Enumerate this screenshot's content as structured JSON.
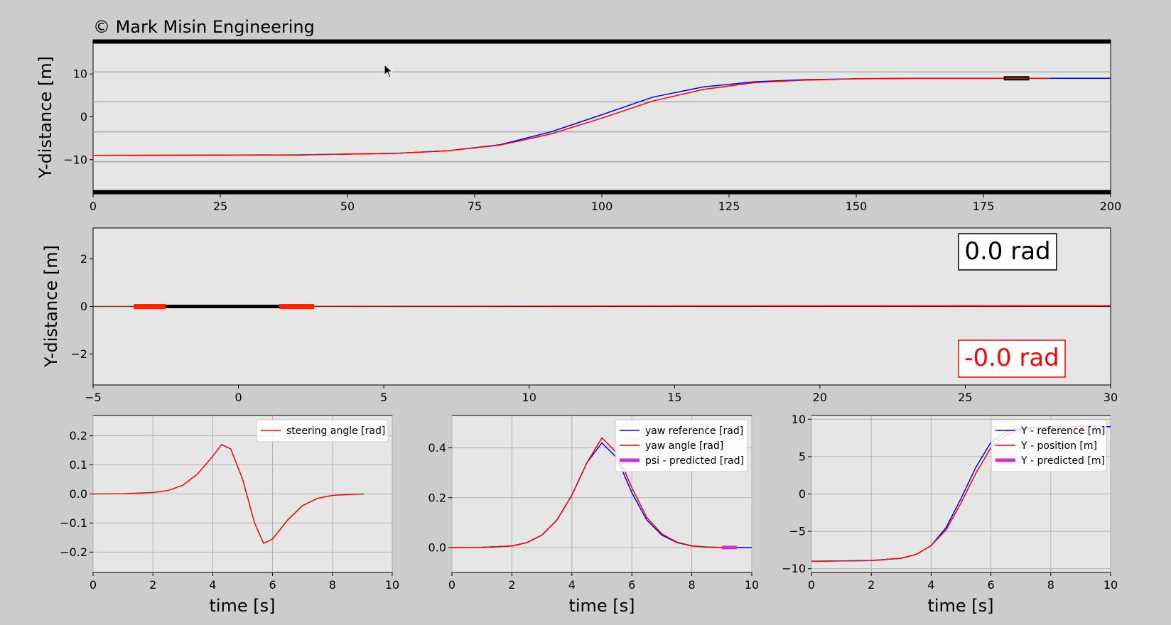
{
  "copyright": "© Mark Misin Engineering",
  "colors": {
    "reference": "#0000ff",
    "actual": "#ff0000",
    "predicted": "#cc33cc",
    "road": "#000000",
    "lane": "#aaaaaa",
    "axes_bg": "#e6e6e6",
    "figure_bg": "#cccccc"
  },
  "chart_data": [
    {
      "type": "line",
      "id": "road",
      "ylabel": "Y-distance [m]",
      "xlabel": "",
      "xlim": [
        0,
        200
      ],
      "ylim": [
        -18,
        18
      ],
      "xticks": [
        "0",
        "25",
        "50",
        "75",
        "100",
        "125",
        "150",
        "175",
        "200"
      ],
      "yticks": [
        "−10",
        "0",
        "10"
      ],
      "lane_lines_y": [
        -10.5,
        -3.5,
        3.5,
        10.5
      ],
      "road_edges_y": [
        -17.5,
        17.5
      ],
      "series": [
        {
          "role": "reference",
          "color": "#0000ff",
          "x": [
            0,
            40,
            60,
            70,
            80,
            90,
            100,
            110,
            120,
            130,
            140,
            150,
            160,
            170,
            180,
            190,
            200
          ],
          "y": [
            -9,
            -8.9,
            -8.5,
            -7.9,
            -6.5,
            -3.5,
            0.5,
            4.6,
            7,
            8.2,
            8.7,
            8.9,
            9,
            9,
            9,
            9,
            9
          ]
        },
        {
          "role": "actual",
          "color": "#ff0000",
          "x": [
            0,
            40,
            60,
            70,
            80,
            90,
            100,
            110,
            120,
            130,
            140,
            150,
            160,
            170,
            180,
            188
          ],
          "y": [
            -9,
            -8.9,
            -8.5,
            -7.9,
            -6.6,
            -4,
            -0.3,
            3.7,
            6.4,
            8,
            8.6,
            8.9,
            9,
            9,
            9,
            9
          ]
        }
      ],
      "vehicle": {
        "x": [
          179,
          184
        ],
        "y": 9
      }
    },
    {
      "type": "line",
      "id": "vehicle-zoom",
      "ylabel": "Y-distance [m]",
      "xlabel": "",
      "xlim": [
        -5,
        30
      ],
      "ylim": [
        -3.3,
        3.3
      ],
      "xticks": [
        "−5",
        "0",
        "5",
        "10",
        "15",
        "20",
        "25",
        "30"
      ],
      "yticks": [
        "−2",
        "0",
        "2"
      ],
      "series": [
        {
          "role": "reference",
          "color": "#000000",
          "x": [
            -5,
            30
          ],
          "y": [
            0,
            0
          ]
        },
        {
          "role": "actual",
          "color": "#ff0000",
          "x": [
            -5,
            30
          ],
          "y": [
            0,
            0.04
          ]
        }
      ],
      "body": {
        "x": [
          -2.5,
          1.5
        ],
        "y": 0
      },
      "wheels": [
        {
          "x": [
            -3.6,
            -2.5
          ],
          "y": 0
        },
        {
          "x": [
            1.4,
            2.6
          ],
          "y": 0
        }
      ],
      "annotations": {
        "reference_angle": "0.0 rad",
        "actual_angle": "-0.0 rad"
      }
    },
    {
      "type": "line",
      "id": "steering",
      "xlabel": "time [s]",
      "ylabel": "",
      "xlim": [
        0,
        10
      ],
      "ylim": [
        -0.27,
        0.27
      ],
      "xticks": [
        "0",
        "2",
        "4",
        "6",
        "8",
        "10"
      ],
      "yticks": [
        "−0.2",
        "−0.1",
        "0.0",
        "0.1",
        "0.2"
      ],
      "yticks_values": [
        -0.2,
        -0.1,
        0.0,
        0.1,
        0.2
      ],
      "legend": "top-right",
      "series": [
        {
          "name": "steering angle [rad]",
          "color": "#ff0000",
          "x": [
            0,
            1,
            2,
            2.5,
            3,
            3.5,
            4,
            4.3,
            4.6,
            5,
            5.4,
            5.7,
            6,
            6.5,
            7,
            7.5,
            8,
            8.5,
            9.05
          ],
          "y": [
            0,
            0.001,
            0.005,
            0.012,
            0.03,
            0.07,
            0.13,
            0.17,
            0.155,
            0.05,
            -0.1,
            -0.17,
            -0.155,
            -0.09,
            -0.04,
            -0.015,
            -0.005,
            -0.002,
            0
          ]
        }
      ]
    },
    {
      "type": "line",
      "id": "yaw",
      "xlabel": "time [s]",
      "ylabel": "",
      "xlim": [
        0,
        10
      ],
      "ylim": [
        -0.1,
        0.53
      ],
      "xticks": [
        "0",
        "2",
        "4",
        "6",
        "8",
        "10"
      ],
      "yticks": [
        "0.0",
        "0.2",
        "0.4"
      ],
      "yticks_values": [
        0.0,
        0.2,
        0.4
      ],
      "legend": "top-right",
      "series": [
        {
          "name": "yaw reference [rad]",
          "color": "#0000ff",
          "x": [
            0,
            1,
            2,
            2.5,
            3,
            3.5,
            4,
            4.5,
            5,
            5.5,
            6,
            6.5,
            7,
            7.5,
            8,
            8.5,
            9,
            10
          ],
          "y": [
            0,
            0.001,
            0.006,
            0.02,
            0.05,
            0.11,
            0.21,
            0.34,
            0.42,
            0.36,
            0.22,
            0.11,
            0.05,
            0.02,
            0.006,
            0.002,
            0,
            0
          ]
        },
        {
          "name": "yaw angle [rad]",
          "color": "#ff0000",
          "x": [
            0,
            1,
            2,
            2.5,
            3,
            3.5,
            4,
            4.5,
            5,
            5.5,
            6,
            6.5,
            7,
            7.5,
            8,
            8.5,
            9.05
          ],
          "y": [
            0,
            0.001,
            0.006,
            0.02,
            0.05,
            0.11,
            0.21,
            0.34,
            0.44,
            0.38,
            0.24,
            0.12,
            0.055,
            0.022,
            0.007,
            0.002,
            0
          ]
        },
        {
          "name": "psi - predicted [rad]",
          "color": "#cc33cc",
          "x": [
            9,
            9.5
          ],
          "y": [
            0,
            0
          ]
        }
      ]
    },
    {
      "type": "line",
      "id": "y-position",
      "xlabel": "time [s]",
      "ylabel": "",
      "xlim": [
        0,
        10
      ],
      "ylim": [
        -10.5,
        10.5
      ],
      "xticks": [
        "0",
        "2",
        "4",
        "6",
        "8",
        "10"
      ],
      "yticks": [
        "−10",
        "−5",
        "0",
        "5",
        "10"
      ],
      "yticks_values": [
        -10,
        -5,
        0,
        5,
        10
      ],
      "legend": "top-right",
      "series": [
        {
          "name": "Y - reference [m]",
          "color": "#0000ff",
          "x": [
            0,
            2,
            3,
            3.5,
            4,
            4.5,
            5,
            5.5,
            6,
            6.5,
            7,
            7.5,
            8,
            9,
            10
          ],
          "y": [
            -9,
            -8.9,
            -8.6,
            -8.1,
            -6.9,
            -4.5,
            -0.6,
            3.6,
            6.9,
            8.3,
            8.8,
            8.95,
            9,
            9,
            9
          ]
        },
        {
          "name": "Y - position [m]",
          "color": "#ff0000",
          "x": [
            0,
            2,
            3,
            3.5,
            4,
            4.5,
            5,
            5.5,
            6,
            6.5,
            7,
            7.5,
            8,
            9.05
          ],
          "y": [
            -9,
            -8.9,
            -8.6,
            -8.1,
            -6.9,
            -4.8,
            -1.2,
            2.8,
            6.2,
            7.9,
            8.6,
            8.9,
            9,
            9
          ]
        },
        {
          "name": "Y - predicted [m]",
          "color": "#cc33cc",
          "x": [
            9,
            9.5
          ],
          "y": [
            9,
            9
          ]
        }
      ]
    }
  ]
}
